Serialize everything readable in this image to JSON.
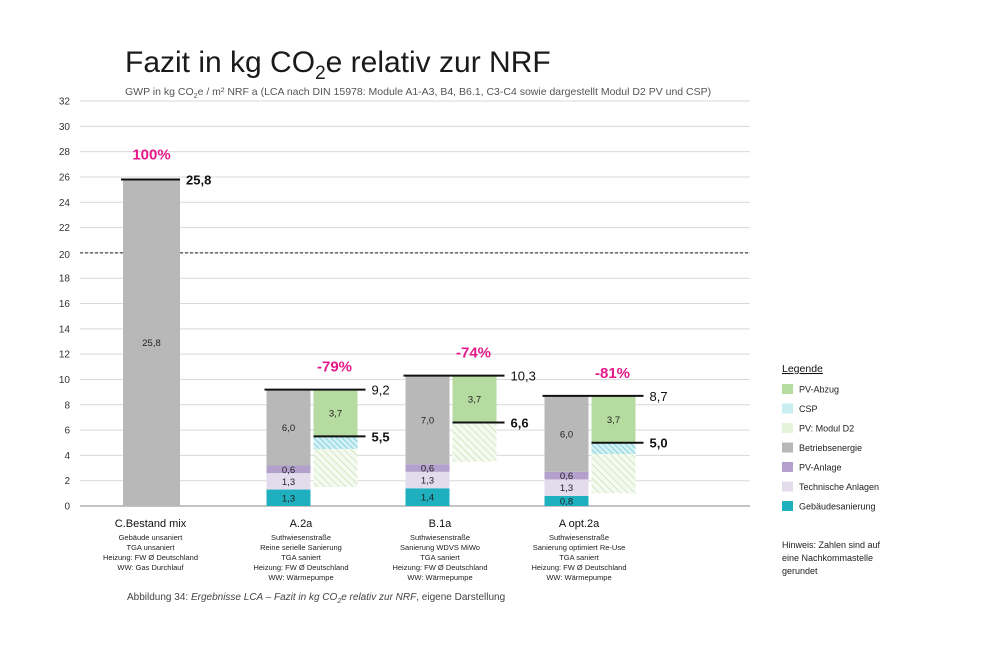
{
  "title": {
    "pre": "Fazit in kg CO",
    "sub": "2",
    "post": "e relativ zur NRF"
  },
  "subtitle": {
    "pre": "GWP in kg CO",
    "sub": "2",
    "post": "e / m² NRF a (LCA nach DIN 15978: Module A1-A3, B4, B6.1, C3-C4 sowie dargestellt Modul D2 PV und CSP)"
  },
  "caption": {
    "pre": "Abbildung 34: ",
    "italic_pre": "Ergebnisse LCA – Fazit in kg CO",
    "sub": "2",
    "italic_post": "e relativ zur NRF",
    "post": ", eigene Darstellung"
  },
  "note": [
    "Hinweis: Zahlen sind auf",
    "eine Nachkommastelle",
    "gerundet"
  ],
  "colors": {
    "pv_abzug": "#b5dba0",
    "csp": "#c8eef2",
    "pv_modul_d2": "#e6f3dc",
    "betriebsenergie": "#b8b8b8",
    "pv_anlage": "#b4a0cd",
    "technische_anlagen": "#e3dced",
    "gebaeudesanierung": "#1fb0c0",
    "highlight": "#e5198a"
  },
  "chart_data": {
    "type": "bar",
    "stacked": true,
    "ylim": [
      0,
      32
    ],
    "yticks": [
      0,
      2,
      4,
      6,
      8,
      10,
      12,
      14,
      16,
      18,
      20,
      22,
      24,
      26,
      28,
      30,
      32
    ],
    "reference_line": {
      "value": 20,
      "label": "20",
      "style": "dashed"
    },
    "legend_title": "Legende",
    "legend_position": "right",
    "legend": [
      {
        "key": "pv_abzug",
        "label": "PV-Abzug"
      },
      {
        "key": "csp",
        "label": "CSP"
      },
      {
        "key": "pv_modul_d2",
        "label": "PV: Modul D2"
      },
      {
        "key": "betriebsenergie",
        "label": "Betriebsenergie"
      },
      {
        "key": "pv_anlage",
        "label": "PV-Anlage"
      },
      {
        "key": "technische_anlagen",
        "label": "Technische Anlagen"
      },
      {
        "key": "gebaeudesanierung",
        "label": "Gebäudesanierung"
      }
    ],
    "categories": [
      {
        "name": "C.Bestand mix",
        "description": [
          "Gebäude unsaniert",
          "TGA unsaniert",
          "Heizung: FW Ø Deutschland",
          "WW: Gas Durchlauf"
        ],
        "segments": [
          {
            "key": "betriebsenergie",
            "value": 25.8,
            "label": "25,8"
          }
        ],
        "total": 25.8,
        "total_label": "25,8",
        "percent": "100%",
        "offset": null
      },
      {
        "name": "A.2a",
        "description": [
          "Suthwiesenstraße",
          "Reine serielle Sanierung",
          "TGA saniert",
          "Heizung: FW Ø Deutschland",
          "WW: Wärmepumpe"
        ],
        "segments": [
          {
            "key": "gebaeudesanierung",
            "value": 1.3,
            "label": "1,3"
          },
          {
            "key": "technische_anlagen",
            "value": 1.3,
            "label": "1,3"
          },
          {
            "key": "pv_anlage",
            "value": 0.6,
            "label": "0,6"
          },
          {
            "key": "betriebsenergie",
            "value": 6.0,
            "label": "6,0"
          }
        ],
        "total": 9.2,
        "total_label": "9,2",
        "percent": "-79%",
        "offset": {
          "pv_abzug": 3.7,
          "pv_abzug_label": "3,7",
          "csp": 1.0,
          "pv_modul_d2": 3.0,
          "net": 5.5,
          "net_label": "5,5"
        }
      },
      {
        "name": "B.1a",
        "description": [
          "Suthwiesenstraße",
          "Sanierung WDVS MiWo",
          "TGA saniert",
          "Heizung: FW Ø Deutschland",
          "WW: Wärmepumpe"
        ],
        "segments": [
          {
            "key": "gebaeudesanierung",
            "value": 1.4,
            "label": "1,4"
          },
          {
            "key": "technische_anlagen",
            "value": 1.3,
            "label": "1,3"
          },
          {
            "key": "pv_anlage",
            "value": 0.6,
            "label": "0,6"
          },
          {
            "key": "betriebsenergie",
            "value": 7.0,
            "label": "7,0"
          }
        ],
        "total": 10.3,
        "total_label": "10,3",
        "percent": "-74%",
        "offset": {
          "pv_abzug": 3.7,
          "pv_abzug_label": "3,7",
          "csp": 0.0,
          "pv_modul_d2": 3.1,
          "net": 6.6,
          "net_label": "6,6"
        }
      },
      {
        "name": "A opt.2a",
        "description": [
          "Suthwiesenstraße",
          "Sanierung optimiert Re-Use",
          "TGA saniert",
          "Heizung: FW Ø Deutschland",
          "WW: Wärmepumpe"
        ],
        "segments": [
          {
            "key": "gebaeudesanierung",
            "value": 0.8,
            "label": "0,8"
          },
          {
            "key": "technische_anlagen",
            "value": 1.3,
            "label": "1,3"
          },
          {
            "key": "pv_anlage",
            "value": 0.6,
            "label": "0,6"
          },
          {
            "key": "betriebsenergie",
            "value": 6.0,
            "label": "6,0"
          }
        ],
        "total": 8.7,
        "total_label": "8,7",
        "percent": "-81%",
        "offset": {
          "pv_abzug": 3.7,
          "pv_abzug_label": "3,7",
          "csp": 0.9,
          "pv_modul_d2": 3.1,
          "net": 5.0,
          "net_label": "5,0"
        }
      }
    ]
  }
}
